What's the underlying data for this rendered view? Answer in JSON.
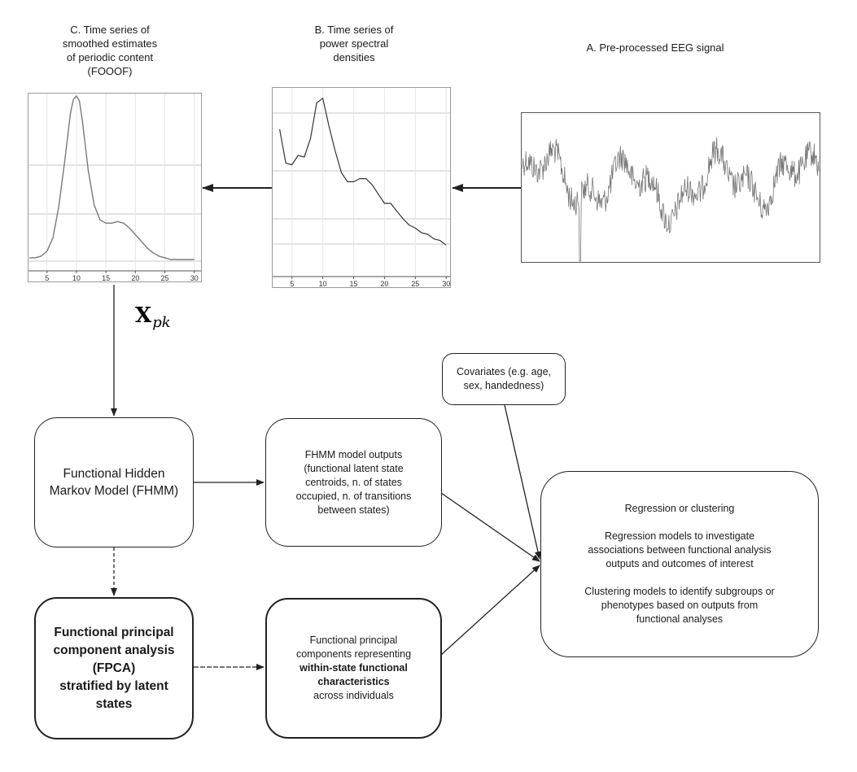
{
  "captions": {
    "c": [
      "C. Time series of",
      "smoothed estimates",
      "of periodic content",
      "(FOOOF)"
    ],
    "b": [
      "B. Time series of",
      "power spectral",
      "densities"
    ],
    "a": "A. Pre-processed EEG signal"
  },
  "x_ticks": [
    "5",
    "10",
    "15",
    "20",
    "25",
    "30"
  ],
  "symbol": {
    "main": "X",
    "sub": "pk"
  },
  "boxes": {
    "fhmm": [
      "Functional Hidden",
      "Markov Model (FHMM)"
    ],
    "fhmm_outputs": [
      "FHMM model outputs",
      "(functional latent state",
      "centroids, n. of states",
      "occupied, n. of transitions",
      "between states)"
    ],
    "fpca": [
      "Functional principal",
      "component analysis",
      "(FPCA)",
      "stratified by latent",
      "states"
    ],
    "fpc_outputs": {
      "normal1": [
        "Functional principal",
        "components representing"
      ],
      "bold": [
        "within-state functional",
        "characteristics"
      ],
      "normal2": [
        "across individuals"
      ]
    },
    "covariates": [
      "Covariates (e.g. age,",
      "sex, handedness)"
    ],
    "regression": {
      "title": "Regression or clustering",
      "para1": [
        "Regression models to investigate",
        "associations between functional analysis",
        "outputs and outcomes of interest"
      ],
      "para2": [
        "Clustering models to identify subgroups or",
        "phenotypes based on outputs from",
        "functional analyses"
      ]
    }
  },
  "chart_data": [
    {
      "type": "line",
      "xlim": [
        2,
        31
      ],
      "x_ticks": [
        5,
        10,
        15,
        20,
        25,
        30
      ],
      "y": "unitless (no y-axis labels)",
      "x": [
        2,
        3,
        4,
        5,
        6,
        7,
        8,
        9,
        9.5,
        10,
        10.5,
        11,
        12,
        13,
        14,
        15,
        16,
        17,
        18,
        19,
        20,
        21,
        22,
        23,
        24,
        25,
        26,
        28,
        30
      ],
      "values": [
        0.02,
        0.02,
        0.03,
        0.06,
        0.14,
        0.33,
        0.6,
        0.9,
        0.98,
        1.0,
        0.97,
        0.85,
        0.55,
        0.34,
        0.25,
        0.23,
        0.23,
        0.24,
        0.23,
        0.2,
        0.16,
        0.12,
        0.08,
        0.05,
        0.03,
        0.02,
        0.01,
        0.01,
        0.01
      ],
      "grid": true
    },
    {
      "type": "line",
      "xlim": [
        2,
        30.5
      ],
      "x_ticks": [
        5,
        10,
        15,
        20,
        25,
        30
      ],
      "y": "unitless (no y-axis labels)",
      "x": [
        3,
        4,
        5,
        6,
        7,
        8,
        9,
        10,
        11,
        12,
        13,
        14,
        15,
        16,
        17,
        18,
        19,
        20,
        21,
        22,
        23,
        24,
        25,
        26,
        27,
        28,
        29,
        30
      ],
      "values": [
        0.78,
        0.56,
        0.55,
        0.61,
        0.6,
        0.72,
        0.95,
        0.98,
        0.8,
        0.64,
        0.5,
        0.44,
        0.44,
        0.46,
        0.46,
        0.42,
        0.36,
        0.3,
        0.3,
        0.25,
        0.2,
        0.16,
        0.14,
        0.11,
        0.1,
        0.07,
        0.06,
        0.03
      ],
      "grid": true
    }
  ],
  "colors": {
    "stroke": "#222222",
    "grid": "#c8c8c8",
    "signal": "#777777"
  }
}
